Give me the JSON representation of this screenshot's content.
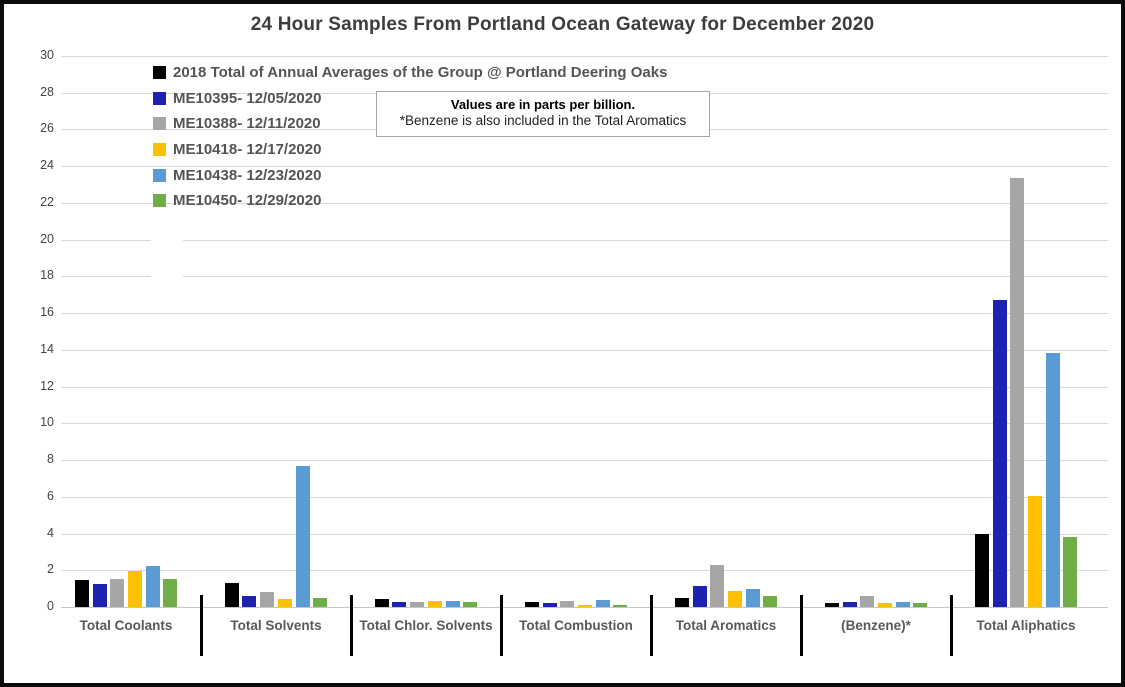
{
  "title": "24 Hour Samples From Portland Ocean Gateway for December 2020",
  "note": {
    "line1": "Values are in parts per billion.",
    "line2": "*Benzene is also included in the Total Aromatics"
  },
  "chart_data": {
    "type": "bar",
    "title": "24 Hour Samples From Portland Ocean Gateway for December 2020",
    "xlabel": "",
    "ylabel": "",
    "units": "parts per billion",
    "ylim": [
      0,
      30
    ],
    "yticks": [
      0,
      2,
      4,
      6,
      8,
      10,
      12,
      14,
      16,
      18,
      20,
      22,
      24,
      26,
      28,
      30
    ],
    "grid": true,
    "legend_position": "inside-top-left",
    "categories": [
      "Total Coolants",
      "Total Solvents",
      "Total Chlor. Solvents",
      "Total Combustion",
      "Total Aromatics",
      "(Benzene)*",
      "Total Aliphatics"
    ],
    "series": [
      {
        "name": "2018 Total of Annual Averages of the Group @ Portland Deering Oaks",
        "color": "#000000",
        "values": [
          1.45,
          1.3,
          0.45,
          0.3,
          0.5,
          0.2,
          4.0
        ]
      },
      {
        "name": "ME10395- 12/05/2020",
        "color": "#1e22b0",
        "values": [
          1.25,
          0.6,
          0.3,
          0.2,
          1.15,
          0.3,
          16.7
        ]
      },
      {
        "name": "ME10388- 12/11/2020",
        "color": "#a6a6a6",
        "values": [
          1.5,
          0.8,
          0.3,
          0.35,
          2.3,
          0.6,
          23.35
        ]
      },
      {
        "name": "ME10418- 12/17/2020",
        "color": "#ffc000",
        "values": [
          1.95,
          0.45,
          0.35,
          0.1,
          0.85,
          0.2,
          6.05
        ]
      },
      {
        "name": "ME10438- 12/23/2020",
        "color": "#5b9bd5",
        "values": [
          2.25,
          7.7,
          0.35,
          0.4,
          1.0,
          0.3,
          13.85
        ]
      },
      {
        "name": "ME10450- 12/29/2020",
        "color": "#70ad47",
        "values": [
          1.55,
          0.5,
          0.25,
          0.1,
          0.6,
          0.2,
          3.8
        ]
      }
    ]
  }
}
